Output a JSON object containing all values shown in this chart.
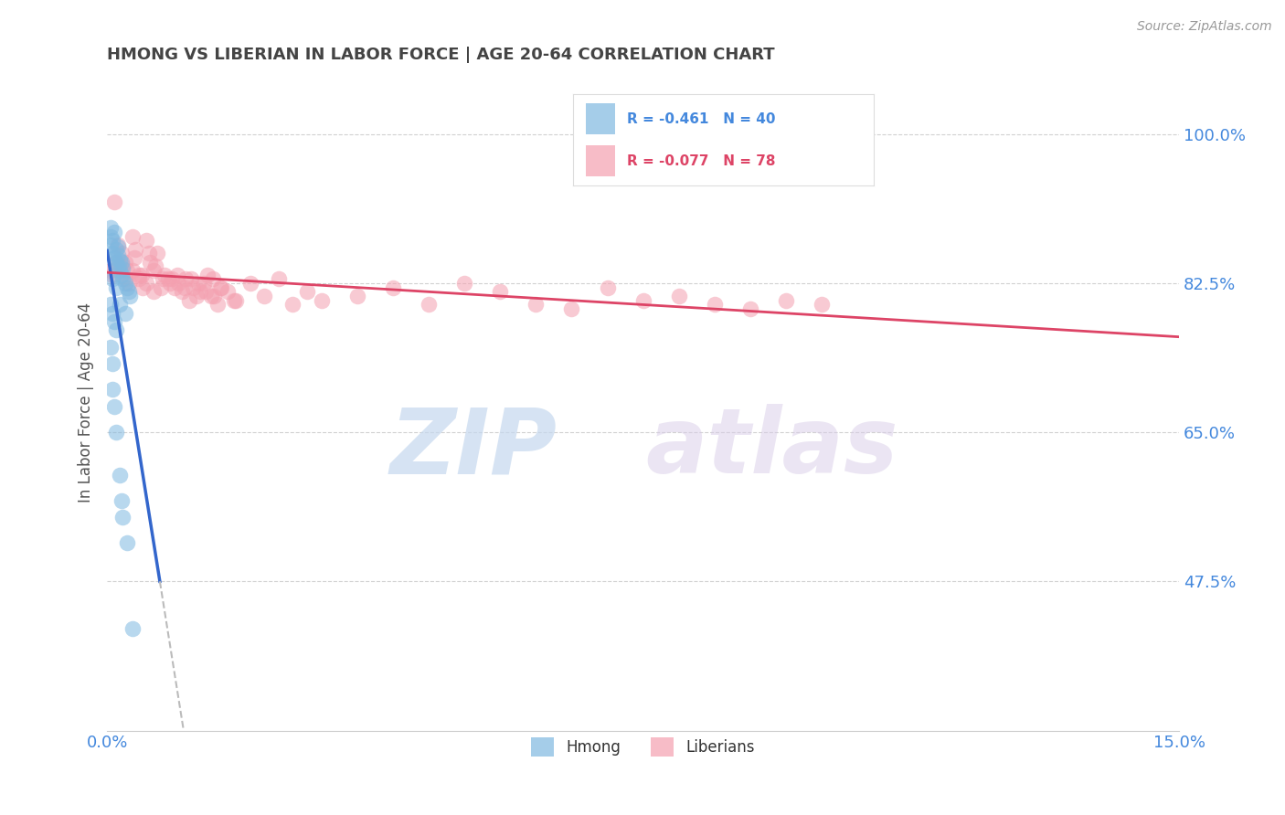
{
  "title": "HMONG VS LIBERIAN IN LABOR FORCE | AGE 20-64 CORRELATION CHART",
  "source_text": "Source: ZipAtlas.com",
  "ylabel": "In Labor Force | Age 20-64",
  "xlim": [
    0.0,
    15.0
  ],
  "ylim": [
    30.0,
    107.0
  ],
  "xticks": [
    0.0,
    15.0
  ],
  "xticklabels": [
    "0.0%",
    "15.0%"
  ],
  "yticks": [
    47.5,
    65.0,
    82.5,
    100.0
  ],
  "yticklabels": [
    "47.5%",
    "65.0%",
    "82.5%",
    "100.0%"
  ],
  "hmong_color": "#7fb8e0",
  "liberian_color": "#f4a0b0",
  "hmong_R": -0.461,
  "hmong_N": 40,
  "liberian_R": -0.077,
  "liberian_N": 78,
  "watermark_zip": "ZIP",
  "watermark_atlas": "atlas",
  "background_color": "#ffffff",
  "grid_color": "#cccccc",
  "title_color": "#444444",
  "axis_label_color": "#555555",
  "tick_color": "#4488dd",
  "legend_text_color": "#333333",
  "hmong_line_color": "#3366cc",
  "liberian_line_color": "#dd4466",
  "dashed_color": "#bbbbbb",
  "hmong_scatter_x": [
    0.05,
    0.08,
    0.1,
    0.12,
    0.15,
    0.18,
    0.2,
    0.22,
    0.25,
    0.28,
    0.3,
    0.32,
    0.05,
    0.08,
    0.12,
    0.15,
    0.18,
    0.22,
    0.05,
    0.1,
    0.15,
    0.2,
    0.08,
    0.12,
    0.18,
    0.25,
    0.05,
    0.08,
    0.1,
    0.12,
    0.05,
    0.08,
    0.07,
    0.1,
    0.12,
    0.18,
    0.2,
    0.22,
    0.28,
    0.35
  ],
  "hmong_scatter_y": [
    87.0,
    86.0,
    85.5,
    85.0,
    84.5,
    84.0,
    83.5,
    83.0,
    82.5,
    82.0,
    81.5,
    81.0,
    88.0,
    87.5,
    86.5,
    85.8,
    85.2,
    84.2,
    89.0,
    88.5,
    86.8,
    85.0,
    83.0,
    82.0,
    80.0,
    79.0,
    80.0,
    79.0,
    78.0,
    77.0,
    75.0,
    73.0,
    70.0,
    68.0,
    65.0,
    60.0,
    57.0,
    55.0,
    52.0,
    42.0
  ],
  "liberian_scatter_x": [
    0.05,
    0.08,
    0.1,
    0.15,
    0.2,
    0.22,
    0.25,
    0.3,
    0.35,
    0.4,
    0.45,
    0.5,
    0.55,
    0.6,
    0.65,
    0.7,
    0.8,
    0.9,
    1.0,
    1.1,
    1.2,
    1.3,
    1.4,
    1.5,
    1.6,
    1.8,
    2.0,
    2.2,
    2.4,
    2.6,
    2.8,
    3.0,
    3.5,
    4.0,
    4.5,
    5.0,
    5.5,
    6.0,
    6.5,
    7.0,
    7.5,
    8.0,
    8.5,
    9.0,
    9.5,
    10.0,
    0.12,
    0.18,
    0.28,
    0.38,
    0.48,
    0.58,
    0.68,
    0.78,
    0.88,
    0.98,
    1.08,
    1.18,
    1.28,
    1.38,
    1.48,
    1.58,
    1.68,
    1.78,
    0.25,
    0.35,
    0.45,
    0.55,
    0.65,
    0.75,
    0.85,
    0.95,
    1.05,
    1.15,
    1.25,
    1.35,
    1.45,
    1.55
  ],
  "liberian_scatter_y": [
    84.0,
    83.5,
    92.0,
    87.0,
    86.0,
    84.5,
    83.0,
    82.5,
    88.0,
    86.5,
    83.0,
    82.0,
    87.5,
    85.0,
    84.0,
    86.0,
    83.5,
    83.0,
    82.5,
    83.0,
    82.0,
    81.5,
    83.5,
    81.0,
    82.0,
    80.5,
    82.5,
    81.0,
    83.0,
    80.0,
    81.5,
    80.5,
    81.0,
    82.0,
    80.0,
    82.5,
    81.5,
    80.0,
    79.5,
    82.0,
    80.5,
    81.0,
    80.0,
    79.5,
    80.5,
    80.0,
    85.0,
    84.5,
    84.0,
    85.5,
    83.5,
    86.0,
    84.5,
    83.0,
    82.5,
    83.5,
    82.0,
    83.0,
    82.5,
    81.5,
    83.0,
    82.0,
    81.5,
    80.5,
    85.0,
    84.0,
    83.5,
    82.5,
    81.5,
    82.0,
    83.0,
    82.0,
    81.5,
    80.5,
    81.0,
    82.5,
    81.0,
    80.0
  ]
}
